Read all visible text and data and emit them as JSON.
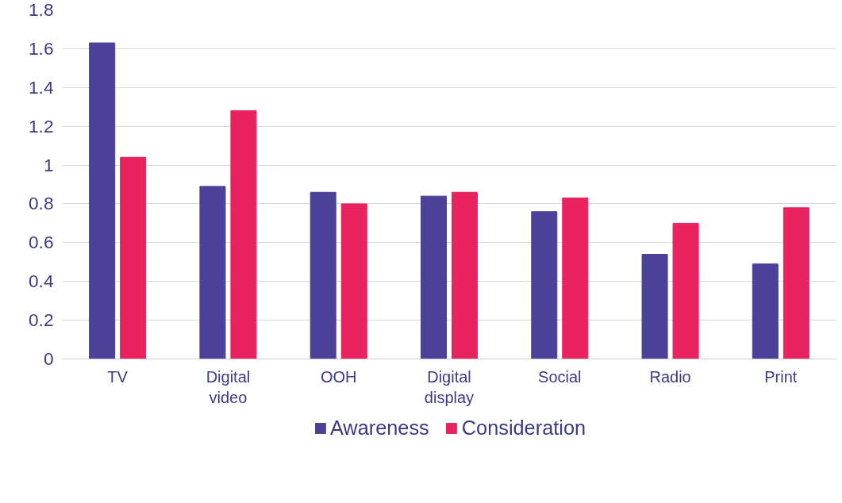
{
  "chart_data": {
    "type": "bar",
    "categories": [
      "TV",
      "Digital video",
      "OOH",
      "Digital display",
      "Social",
      "Radio",
      "Print"
    ],
    "series": [
      {
        "name": "Awareness",
        "color": "#4b4199",
        "values": [
          1.63,
          0.89,
          0.86,
          0.84,
          0.76,
          0.54,
          0.49
        ]
      },
      {
        "name": "Consideration",
        "color": "#e8235f",
        "values": [
          1.04,
          1.28,
          0.8,
          0.86,
          0.83,
          0.7,
          0.78
        ]
      }
    ],
    "ylim": [
      0,
      1.8
    ],
    "yticks": [
      0,
      0.2,
      0.4,
      0.6,
      0.8,
      1,
      1.2,
      1.4,
      1.6,
      1.8
    ],
    "grid": "y",
    "legend": "bottom"
  }
}
